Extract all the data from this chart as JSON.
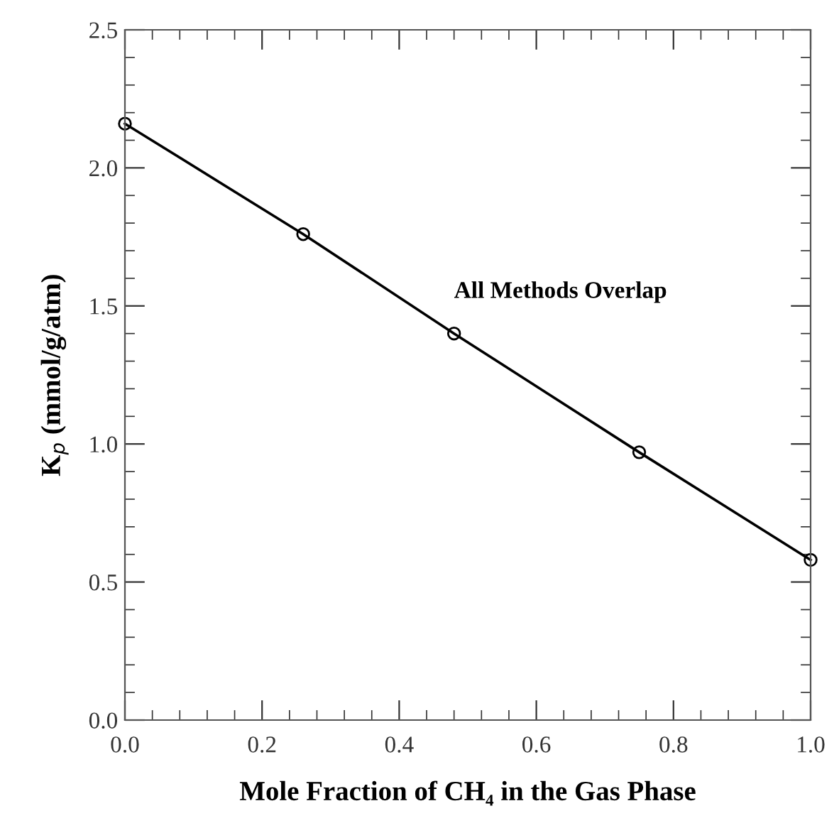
{
  "chart_data": {
    "type": "line",
    "xlabel": "Mole Fraction of CH₄ in the Gas Phase",
    "ylabel": "K$_{p}$ (mmol/g/atm)",
    "annotations": [
      "All Methods Overlap"
    ],
    "x": [
      0.0,
      0.26,
      0.48,
      0.75,
      1.0
    ],
    "series": [
      {
        "color": "#000000",
        "values": [
          2.16,
          1.76,
          1.4,
          0.97,
          0.58
        ]
      }
    ],
    "marker": "circle",
    "line_style": "solid",
    "grid": false,
    "legend": false,
    "xlim": [
      0.0,
      1.0
    ],
    "ylim": [
      0.0,
      2.5
    ],
    "xticks": [
      {
        "value": 0.0,
        "label": "0.0"
      },
      {
        "value": 0.04,
        "label": null
      },
      {
        "value": 0.08,
        "label": null
      },
      {
        "value": 0.12,
        "label": null
      },
      {
        "value": 0.16,
        "label": null
      },
      {
        "value": 0.2,
        "label": "0.2"
      },
      {
        "value": 0.24,
        "label": null
      },
      {
        "value": 0.28,
        "label": null
      },
      {
        "value": 0.32,
        "label": null
      },
      {
        "value": 0.36,
        "label": null
      },
      {
        "value": 0.4,
        "label": "0.4"
      },
      {
        "value": 0.44,
        "label": null
      },
      {
        "value": 0.48,
        "label": null
      },
      {
        "value": 0.52,
        "label": null
      },
      {
        "value": 0.56,
        "label": null
      },
      {
        "value": 0.6,
        "label": "0.6"
      },
      {
        "value": 0.64,
        "label": null
      },
      {
        "value": 0.68,
        "label": null
      },
      {
        "value": 0.72,
        "label": null
      },
      {
        "value": 0.76,
        "label": null
      },
      {
        "value": 0.8,
        "label": "0.8"
      },
      {
        "value": 0.84,
        "label": null
      },
      {
        "value": 0.88,
        "label": null
      },
      {
        "value": 0.92,
        "label": null
      },
      {
        "value": 0.96,
        "label": null
      },
      {
        "value": 1.0,
        "label": "1.0"
      }
    ],
    "yticks": [
      {
        "value": 0.0,
        "label": "0.0"
      },
      {
        "value": 0.1,
        "label": null
      },
      {
        "value": 0.2,
        "label": null
      },
      {
        "value": 0.3,
        "label": null
      },
      {
        "value": 0.4,
        "label": null
      },
      {
        "value": 0.5,
        "label": "0.5"
      },
      {
        "value": 0.6,
        "label": null
      },
      {
        "value": 0.7,
        "label": null
      },
      {
        "value": 0.8,
        "label": null
      },
      {
        "value": 0.9,
        "label": null
      },
      {
        "value": 1.0,
        "label": "1.0"
      },
      {
        "value": 1.1,
        "label": null
      },
      {
        "value": 1.2,
        "label": null
      },
      {
        "value": 1.3,
        "label": null
      },
      {
        "value": 1.4,
        "label": null
      },
      {
        "value": 1.5,
        "label": "1.5"
      },
      {
        "value": 1.6,
        "label": null
      },
      {
        "value": 1.7,
        "label": null
      },
      {
        "value": 1.8,
        "label": null
      },
      {
        "value": 1.9,
        "label": null
      },
      {
        "value": 2.0,
        "label": "2.0"
      },
      {
        "value": 2.1,
        "label": null
      },
      {
        "value": 2.2,
        "label": null
      },
      {
        "value": 2.3,
        "label": null
      },
      {
        "value": 2.4,
        "label": null
      },
      {
        "value": 2.5,
        "label": "2.5"
      }
    ]
  }
}
